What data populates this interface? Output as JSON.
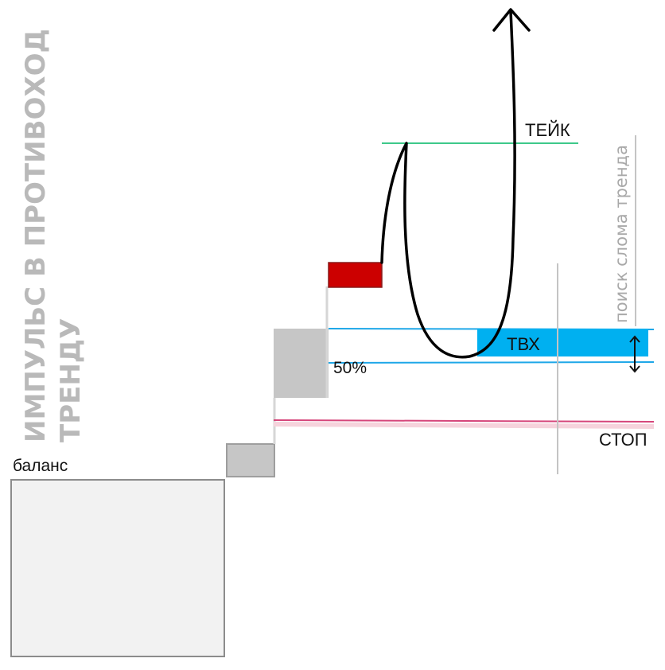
{
  "title_lines": [
    "ИМПУЛЬС В ПРОТИВОХОД",
    "ТРЕНДУ"
  ],
  "labels": {
    "balance": "баланс",
    "take": "ТЕЙК",
    "entry_zone": "ТВХ",
    "fifty": "50%",
    "stop": "СТОП",
    "trend_break": "поиск слома тренда"
  },
  "colors": {
    "take_line": "#3ec98a",
    "entry_line": "#1ea7e8",
    "entry_fill": "#00b0f0",
    "stop_line": "#d6457a",
    "red_candle": "#cc0000",
    "gray_candle": "#c6c6c6",
    "balance_fill": "#f2f2f2",
    "title": "#b9b9b9"
  }
}
